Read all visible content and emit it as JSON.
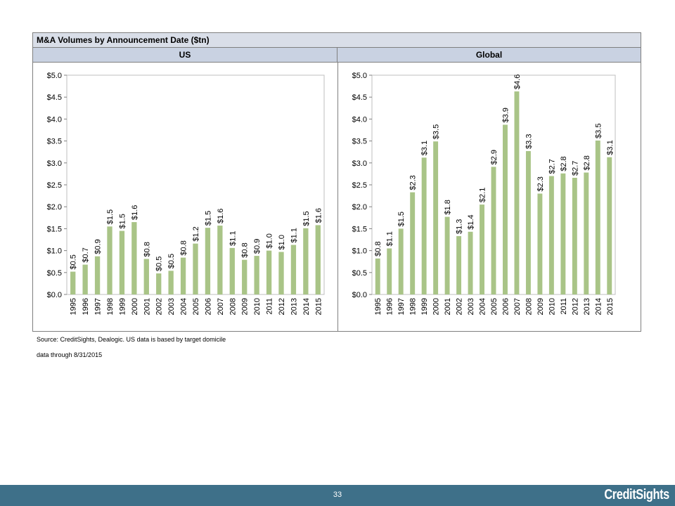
{
  "title": "M&A Volumes by Announcement Date  ($tn)",
  "chart_data": [
    {
      "type": "bar",
      "title": "US",
      "categories": [
        "1995",
        "1996",
        "1997",
        "1998",
        "1999",
        "2000",
        "2001",
        "2002",
        "2003",
        "2004",
        "2005",
        "2006",
        "2007",
        "2008",
        "2009",
        "2010",
        "2011",
        "2012",
        "2013",
        "2014",
        "2015"
      ],
      "values": [
        0.5,
        0.7,
        0.9,
        1.5,
        1.5,
        1.6,
        0.8,
        0.5,
        0.5,
        0.8,
        1.2,
        1.5,
        1.6,
        1.1,
        0.8,
        0.9,
        1.0,
        1.0,
        1.1,
        1.5,
        1.6
      ],
      "plot_values": [
        0.52,
        0.68,
        0.87,
        1.55,
        1.45,
        1.65,
        0.81,
        0.48,
        0.54,
        0.84,
        1.16,
        1.52,
        1.57,
        1.06,
        0.79,
        0.88,
        1.0,
        0.97,
        1.13,
        1.51,
        1.58
      ],
      "labels": [
        "$0.5",
        "$0.7",
        "$0.9",
        "$1.5",
        "$1.5",
        "$1.6",
        "$0.8",
        "$0.5",
        "$0.5",
        "$0.8",
        "$1.2",
        "$1.5",
        "$1.6",
        "$1.1",
        "$0.8",
        "$0.9",
        "$1.0",
        "$1.0",
        "$1.1",
        "$1.5",
        "$1.6"
      ],
      "ylim": [
        0,
        5
      ],
      "yticks": [
        "$0.0",
        "$0.5",
        "$1.0",
        "$1.5",
        "$2.0",
        "$2.5",
        "$3.0",
        "$3.5",
        "$4.0",
        "$4.5",
        "$5.0"
      ],
      "xlabel": "",
      "ylabel": "",
      "grid": false,
      "bar_color": "#a9c487"
    },
    {
      "type": "bar",
      "title": "Global",
      "categories": [
        "1995",
        "1996",
        "1997",
        "1998",
        "1999",
        "2000",
        "2001",
        "2002",
        "2003",
        "2004",
        "2005",
        "2006",
        "2007",
        "2008",
        "2009",
        "2010",
        "2011",
        "2012",
        "2013",
        "2014",
        "2015"
      ],
      "values": [
        0.8,
        1.1,
        1.5,
        2.3,
        3.1,
        3.5,
        1.8,
        1.3,
        1.4,
        2.1,
        2.9,
        3.9,
        4.6,
        3.3,
        2.3,
        2.7,
        2.8,
        2.7,
        2.8,
        3.5,
        3.1
      ],
      "plot_values": [
        0.82,
        1.05,
        1.5,
        2.33,
        3.12,
        3.49,
        1.77,
        1.33,
        1.43,
        2.05,
        2.91,
        3.87,
        4.63,
        3.27,
        2.3,
        2.7,
        2.76,
        2.66,
        2.78,
        3.51,
        3.13
      ],
      "labels": [
        "$0.8",
        "$1.1",
        "$1.5",
        "$2.3",
        "$3.1",
        "$3.5",
        "$1.8",
        "$1.3",
        "$1.4",
        "$2.1",
        "$2.9",
        "$3.9",
        "$4.6",
        "$3.3",
        "$2.3",
        "$2.7",
        "$2.8",
        "$2.7",
        "$2.8",
        "$3.5",
        "$3.1"
      ],
      "ylim": [
        0,
        5
      ],
      "yticks": [
        "$0.0",
        "$0.5",
        "$1.0",
        "$1.5",
        "$2.0",
        "$2.5",
        "$3.0",
        "$3.5",
        "$4.0",
        "$4.5",
        "$5.0"
      ],
      "xlabel": "",
      "ylabel": "",
      "grid": false,
      "bar_color": "#a9c487"
    }
  ],
  "notes": {
    "source": "Source: CreditSights, Dealogic.  US data is based by target domicile",
    "data_through": "data through 8/31/2015"
  },
  "footer": {
    "page_number": "33",
    "brand": "CreditSights"
  },
  "colors": {
    "title_bg": "#d9dee8",
    "header_bg": "#c9d2e2",
    "footer_bg": "#3e7089",
    "bar": "#a9c487"
  }
}
